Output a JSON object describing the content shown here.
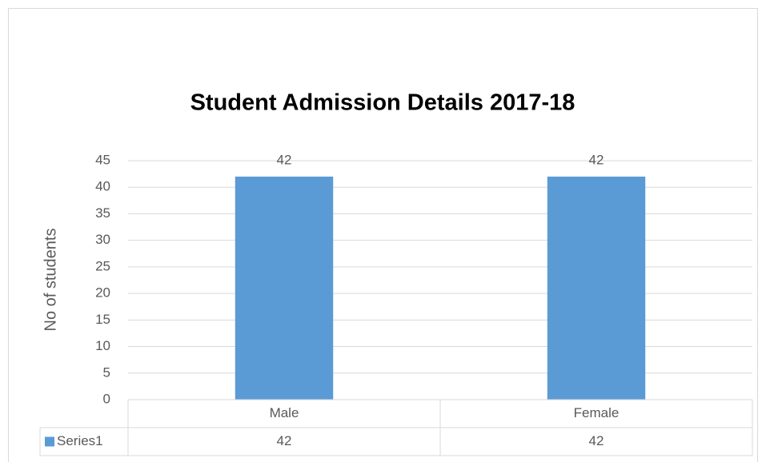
{
  "chart_data": {
    "type": "bar",
    "title": "Student Admission Details 2017-18",
    "y_axis_label": "No of students",
    "categories": [
      "Male",
      "Female"
    ],
    "series": [
      {
        "name": "Series1",
        "color": "#5b9bd5",
        "values": [
          42,
          42
        ]
      }
    ],
    "ylim": [
      0,
      45
    ],
    "yticks": [
      0,
      5,
      10,
      15,
      20,
      25,
      30,
      35,
      40,
      45
    ],
    "grid": true,
    "data_table": true
  }
}
